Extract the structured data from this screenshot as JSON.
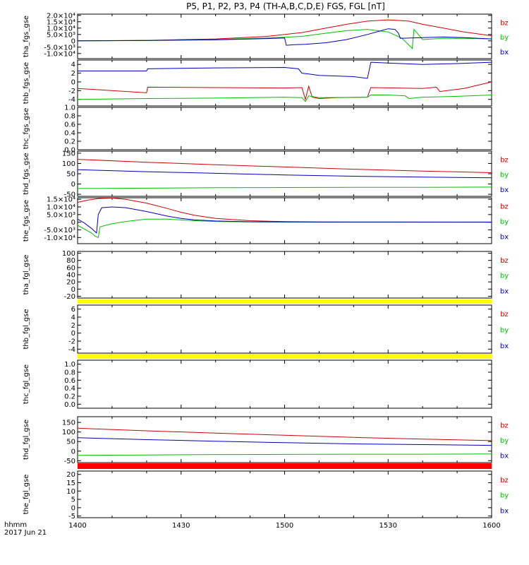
{
  "chart_data": {
    "type": "line",
    "title": "P5, P1, P2, P3, P4 (TH-A,B,C,D,E) FGS, FGL [nT]",
    "x_label_row1": "hhmm",
    "x_label_row2": "2017 Jun 21",
    "x_range": [
      0,
      120
    ],
    "x_ticks": [
      {
        "v": 0,
        "label": "1400"
      },
      {
        "v": 30,
        "label": "1430"
      },
      {
        "v": 60,
        "label": "1500"
      },
      {
        "v": 90,
        "label": "1530"
      },
      {
        "v": 120,
        "label": "1600"
      }
    ],
    "legend": [
      {
        "name": "bz",
        "color": "#d00000"
      },
      {
        "name": "by",
        "color": "#00c000"
      },
      {
        "name": "bx",
        "color": "#0000c0"
      }
    ],
    "panels": [
      {
        "ylabel": "tha_fgs_gse",
        "ylim": [
          -14000,
          21000
        ],
        "legend": true,
        "ticks": [
          {
            "v": 20000,
            "label": "2.0×10⁴"
          },
          {
            "v": 15000,
            "label": "1.5×10⁴"
          },
          {
            "v": 10000,
            "label": "1.0×10⁴"
          },
          {
            "v": 5000,
            "label": "5.0×10³"
          },
          {
            "v": 0,
            "label": "0"
          },
          {
            "v": -5000,
            "label": "-5.0×10³"
          },
          {
            "v": -10000,
            "label": "-1.0×10⁴"
          }
        ],
        "series": [
          {
            "name": "bz",
            "x": [
              0,
              20,
              40,
              55,
              65,
              72,
              78,
              84,
              90,
              96,
              100,
              106,
              112,
              120
            ],
            "y": [
              0,
              400,
              1500,
              3500,
              6500,
              10000,
              13000,
              15500,
              16500,
              15500,
              13000,
              10000,
              7000,
              4000
            ]
          },
          {
            "name": "by",
            "x": [
              0,
              20,
              40,
              55,
              60,
              65,
              72,
              78,
              84,
              90,
              94,
              97,
              97.5,
              100,
              106,
              112,
              120
            ],
            "y": [
              0,
              300,
              1000,
              2200,
              2800,
              3500,
              6000,
              8000,
              9000,
              7000,
              2000,
              -6000,
              9000,
              1000,
              2000,
              2000,
              1500
            ]
          },
          {
            "name": "bx",
            "x": [
              0,
              20,
              40,
              55,
              60,
              60.5,
              63,
              66,
              72,
              78,
              84,
              88,
              90,
              92,
              93,
              93.5,
              100,
              106,
              112,
              120
            ],
            "y": [
              0,
              200,
              800,
              1800,
              2300,
              -3500,
              -3000,
              -2800,
              -1500,
              1000,
              5000,
              8000,
              9500,
              9000,
              6000,
              2000,
              2500,
              3000,
              2500,
              1500
            ]
          }
        ]
      },
      {
        "ylabel": "thb_fgs_gse",
        "ylim": [
          -5.5,
          5
        ],
        "ticks": [
          {
            "v": 4,
            "label": "4"
          },
          {
            "v": 2,
            "label": "2"
          },
          {
            "v": 0,
            "label": "0"
          },
          {
            "v": -2,
            "label": "-2"
          },
          {
            "v": -4,
            "label": "-4"
          }
        ],
        "series": [
          {
            "name": "bz",
            "x": [
              0,
              20,
              20.3,
              40,
              60,
              65,
              66,
              67,
              68,
              70,
              75,
              84,
              85,
              100,
              104,
              105,
              112,
              120
            ],
            "y": [
              -1.5,
              -2.5,
              -1.2,
              -1.3,
              -1.4,
              -1.3,
              -4.0,
              -1.0,
              -3.5,
              -3.8,
              -3.6,
              -3.5,
              -1.3,
              -1.5,
              -1.2,
              -2.2,
              -1.5,
              0.0
            ]
          },
          {
            "name": "by",
            "x": [
              0,
              20,
              40,
              60,
              65,
              66,
              67,
              70,
              84,
              85,
              90,
              95,
              96,
              100,
              110,
              120
            ],
            "y": [
              -4.0,
              -3.8,
              -3.7,
              -3.5,
              -3.6,
              -4.5,
              -3.2,
              -3.6,
              -3.5,
              -3.0,
              -3.0,
              -3.2,
              -3.8,
              -3.5,
              -3.3,
              -3.0
            ]
          },
          {
            "name": "bx",
            "x": [
              0,
              20,
              20.3,
              40,
              60,
              64,
              65,
              67,
              70,
              80,
              84,
              85,
              90,
              100,
              110,
              120
            ],
            "y": [
              2.5,
              2.5,
              3.0,
              3.2,
              3.3,
              3.0,
              2.0,
              1.8,
              1.5,
              1.2,
              0.8,
              4.5,
              4.3,
              4.0,
              4.2,
              4.5
            ]
          }
        ]
      },
      {
        "ylabel": "thc_fgs_gse",
        "ylim": [
          0,
          1
        ],
        "ticks": [
          {
            "v": 1.0,
            "label": "1.0"
          },
          {
            "v": 0.8,
            "label": "0.8"
          },
          {
            "v": 0.6,
            "label": "0.6"
          },
          {
            "v": 0.4,
            "label": "0.4"
          },
          {
            "v": 0.2,
            "label": "0.2"
          },
          {
            "v": 0.0,
            "label": "0.0"
          }
        ],
        "series": []
      },
      {
        "ylabel": "thd_fgs_gse",
        "ylim": [
          -60,
          160
        ],
        "legend": true,
        "ticks": [
          {
            "v": 150,
            "label": "150"
          },
          {
            "v": 100,
            "label": "100"
          },
          {
            "v": 50,
            "label": "50"
          },
          {
            "v": 0,
            "label": "0"
          },
          {
            "v": -50,
            "label": "-50"
          }
        ],
        "series": [
          {
            "name": "bz",
            "x": [
              0,
              20,
              40,
              60,
              80,
              100,
              120
            ],
            "y": [
              120,
              106,
              94,
              83,
              72,
              63,
              55
            ]
          },
          {
            "name": "by",
            "x": [
              0,
              20,
              40,
              60,
              80,
              100,
              120
            ],
            "y": [
              -22,
              -20,
              -18,
              -17,
              -16,
              -16,
              -15
            ]
          },
          {
            "name": "bx",
            "x": [
              0,
              20,
              40,
              60,
              80,
              100,
              120
            ],
            "y": [
              70,
              60,
              52,
              44,
              38,
              34,
              30
            ]
          }
        ]
      },
      {
        "ylabel": "the_fgs_gse",
        "ylim": [
          -14000,
          16000
        ],
        "legend": true,
        "ticks": [
          {
            "v": 15000,
            "label": "1.5×10⁴"
          },
          {
            "v": 10000,
            "label": "1.0×10⁴"
          },
          {
            "v": 5000,
            "label": "5.0×10³"
          },
          {
            "v": 0,
            "label": "0"
          },
          {
            "v": -5000,
            "label": "-5.0×10³"
          },
          {
            "v": -10000,
            "label": "-1.0×10⁴"
          }
        ],
        "series": [
          {
            "name": "bz",
            "x": [
              0,
              3,
              6,
              10,
              14,
              20,
              26,
              30,
              34,
              40,
              50,
              60,
              70,
              90,
              120
            ],
            "y": [
              13000,
              14500,
              15500,
              15800,
              15000,
              12500,
              9000,
              6500,
              4500,
              2500,
              1000,
              400,
              200,
              100,
              50
            ]
          },
          {
            "name": "by",
            "x": [
              0,
              2,
              4,
              5,
              6,
              6.5,
              10,
              14,
              20,
              26,
              30,
              34,
              40,
              50,
              60,
              70,
              90,
              120
            ],
            "y": [
              -2000,
              -4500,
              -7000,
              -9000,
              -10000,
              -3000,
              -1000,
              500,
              2000,
              2000,
              1500,
              1000,
              500,
              200,
              100,
              50,
              50,
              50
            ]
          },
          {
            "name": "bx",
            "x": [
              0,
              2,
              4,
              5,
              5.5,
              6,
              7,
              10,
              14,
              20,
              26,
              30,
              34,
              40,
              50,
              60,
              70,
              90,
              120
            ],
            "y": [
              2000,
              -500,
              -4000,
              -6000,
              -7000,
              5000,
              9500,
              10000,
              9500,
              7000,
              4000,
              2500,
              1500,
              800,
              300,
              200,
              100,
              100,
              100
            ]
          }
        ]
      },
      {
        "ylabel": "tha_fgl_gse",
        "ylim": [
          -25,
          105
        ],
        "band_color": "#ffff00",
        "legend": true,
        "ticks": [
          {
            "v": 100,
            "label": "100"
          },
          {
            "v": 80,
            "label": "80"
          },
          {
            "v": 60,
            "label": "60"
          },
          {
            "v": 40,
            "label": "40"
          },
          {
            "v": 20,
            "label": "20"
          },
          {
            "v": 0,
            "label": "0"
          },
          {
            "v": -20,
            "label": "-20"
          }
        ],
        "series": []
      },
      {
        "ylabel": "thb_fgl_gse",
        "ylim": [
          -5,
          7
        ],
        "band_color": "#ffff00",
        "legend": true,
        "ticks": [
          {
            "v": 6,
            "label": "6"
          },
          {
            "v": 4,
            "label": "4"
          },
          {
            "v": 2,
            "label": "2"
          },
          {
            "v": 0,
            "label": "0"
          },
          {
            "v": -2,
            "label": "-2"
          },
          {
            "v": -4,
            "label": "-4"
          }
        ],
        "series": []
      },
      {
        "ylabel": "thc_fgl_gse",
        "ylim": [
          -0.1,
          1.1
        ],
        "ticks": [
          {
            "v": 1.0,
            "label": "1.0"
          },
          {
            "v": 0.8,
            "label": "0.8"
          },
          {
            "v": 0.6,
            "label": "0.6"
          },
          {
            "v": 0.4,
            "label": "0.4"
          },
          {
            "v": 0.2,
            "label": "0.2"
          },
          {
            "v": 0.0,
            "label": "0.0"
          }
        ],
        "series": []
      },
      {
        "ylabel": "thd_fgl_gse",
        "ylim": [
          -60,
          180
        ],
        "band_color": "#ff0000",
        "legend": true,
        "ticks": [
          {
            "v": 150,
            "label": "150"
          },
          {
            "v": 100,
            "label": "100"
          },
          {
            "v": 50,
            "label": "50"
          },
          {
            "v": 0,
            "label": "0"
          },
          {
            "v": -50,
            "label": "-50"
          }
        ],
        "series": [
          {
            "name": "bz",
            "x": [
              0,
              20,
              40,
              60,
              80,
              100,
              120
            ],
            "y": [
              120,
              106,
              94,
              83,
              72,
              63,
              55
            ]
          },
          {
            "name": "by",
            "x": [
              0,
              20,
              40,
              60,
              80,
              100,
              120
            ],
            "y": [
              -22,
              -20,
              -18,
              -17,
              -16,
              -16,
              -15
            ]
          },
          {
            "name": "bx",
            "x": [
              0,
              20,
              40,
              60,
              80,
              100,
              120
            ],
            "y": [
              70,
              60,
              52,
              44,
              38,
              34,
              30
            ]
          }
        ]
      },
      {
        "ylabel": "the_fgl_gse",
        "ylim": [
          -6,
          22
        ],
        "band_color": "#ffff00",
        "legend": true,
        "ticks": [
          {
            "v": 20,
            "label": "20"
          },
          {
            "v": 15,
            "label": "15"
          },
          {
            "v": 10,
            "label": "10"
          },
          {
            "v": 5,
            "label": "5"
          },
          {
            "v": 0,
            "label": "0"
          },
          {
            "v": -5,
            "label": "-5"
          }
        ],
        "series": []
      }
    ]
  }
}
